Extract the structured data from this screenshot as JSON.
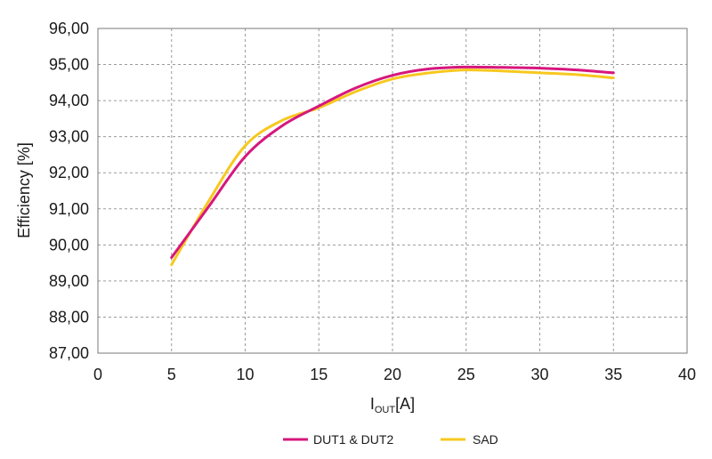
{
  "chart_data": {
    "type": "line",
    "xlabel_main": "I",
    "xlabel_sub": "OUT",
    "xlabel_unit": "[A]",
    "ylabel": "Efficiency [%]",
    "xlim": [
      0,
      40
    ],
    "ylim": [
      87,
      96
    ],
    "x_ticks": [
      "0",
      "5",
      "10",
      "15",
      "20",
      "25",
      "30",
      "35",
      "40"
    ],
    "y_ticks": [
      "87,00",
      "88,00",
      "89,00",
      "90,00",
      "91,00",
      "92,00",
      "93,00",
      "94,00",
      "95,00",
      "96,00"
    ],
    "grid": true,
    "legend_position": "bottom",
    "series": [
      {
        "name": "DUT1 & DUT2",
        "color": "#d6177d",
        "x": [
          5,
          7.5,
          10,
          12.5,
          15,
          17.5,
          20,
          22.5,
          25,
          27.5,
          30,
          32.5,
          35
        ],
        "y": [
          89.65,
          91.05,
          92.45,
          93.3,
          93.85,
          94.35,
          94.7,
          94.88,
          94.93,
          94.92,
          94.9,
          94.85,
          94.77
        ]
      },
      {
        "name": "SAD",
        "color": "#f7c81e",
        "x": [
          5,
          7.5,
          10,
          12.5,
          15,
          17.5,
          20,
          22.5,
          25,
          27.5,
          30,
          32.5,
          35
        ],
        "y": [
          89.45,
          91.2,
          92.75,
          93.45,
          93.8,
          94.25,
          94.6,
          94.77,
          94.85,
          94.82,
          94.77,
          94.72,
          94.63
        ]
      }
    ]
  }
}
